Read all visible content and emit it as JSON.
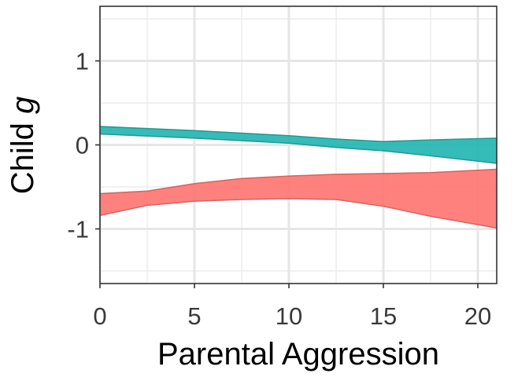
{
  "chart_data": {
    "type": "area",
    "xlabel": "Parental Aggression",
    "ylabel_text": "Child ",
    "ylabel_symbol": "g",
    "xlim": [
      0,
      21
    ],
    "ylim": [
      -1.65,
      1.65
    ],
    "x_ticks": [
      0,
      5,
      10,
      15,
      20
    ],
    "x_tick_labels": [
      "0",
      "5",
      "10",
      "15",
      "20"
    ],
    "y_ticks": [
      -1,
      0,
      1
    ],
    "y_tick_labels": [
      "-1",
      "0",
      "1"
    ],
    "grid": true,
    "legend": "none",
    "series": [
      {
        "color": "#1fb5b0",
        "x": [
          0,
          5,
          10,
          12.5,
          15,
          17.5,
          21
        ],
        "upper": [
          0.22,
          0.17,
          0.11,
          0.07,
          0.04,
          0.06,
          0.08
        ],
        "lower": [
          0.13,
          0.08,
          0.02,
          -0.03,
          -0.07,
          -0.13,
          -0.22
        ]
      },
      {
        "color": "#ff7370",
        "x": [
          0,
          2.5,
          5,
          7.5,
          10,
          12.5,
          15,
          17.5,
          21
        ],
        "upper": [
          -0.58,
          -0.55,
          -0.46,
          -0.4,
          -0.37,
          -0.35,
          -0.34,
          -0.33,
          -0.29
        ],
        "lower": [
          -0.84,
          -0.72,
          -0.67,
          -0.65,
          -0.64,
          -0.65,
          -0.73,
          -0.85,
          -0.99
        ]
      }
    ]
  }
}
